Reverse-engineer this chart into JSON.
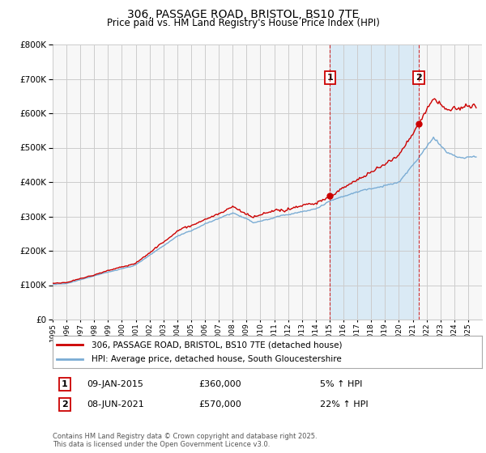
{
  "title": "306, PASSAGE ROAD, BRISTOL, BS10 7TE",
  "subtitle": "Price paid vs. HM Land Registry's House Price Index (HPI)",
  "footer": "Contains HM Land Registry data © Crown copyright and database right 2025.\nThis data is licensed under the Open Government Licence v3.0.",
  "legend_line1": "306, PASSAGE ROAD, BRISTOL, BS10 7TE (detached house)",
  "legend_line2": "HPI: Average price, detached house, South Gloucestershire",
  "annotation1_date": "09-JAN-2015",
  "annotation1_price": "£360,000",
  "annotation1_hpi": "5% ↑ HPI",
  "annotation2_date": "08-JUN-2021",
  "annotation2_price": "£570,000",
  "annotation2_hpi": "22% ↑ HPI",
  "sale1_x": 2015.03,
  "sale1_y": 360000,
  "sale2_x": 2021.44,
  "sale2_y": 570000,
  "vline1_x": 2015.03,
  "vline2_x": 2021.44,
  "ylim": [
    0,
    800000
  ],
  "xlim": [
    1995,
    2026
  ],
  "red_color": "#cc0000",
  "blue_color": "#7aacd4",
  "shading_color": "#daeaf5",
  "background_color": "#f0f0f0",
  "grid_color": "#cccccc",
  "chart_bg": "#f7f7f7"
}
